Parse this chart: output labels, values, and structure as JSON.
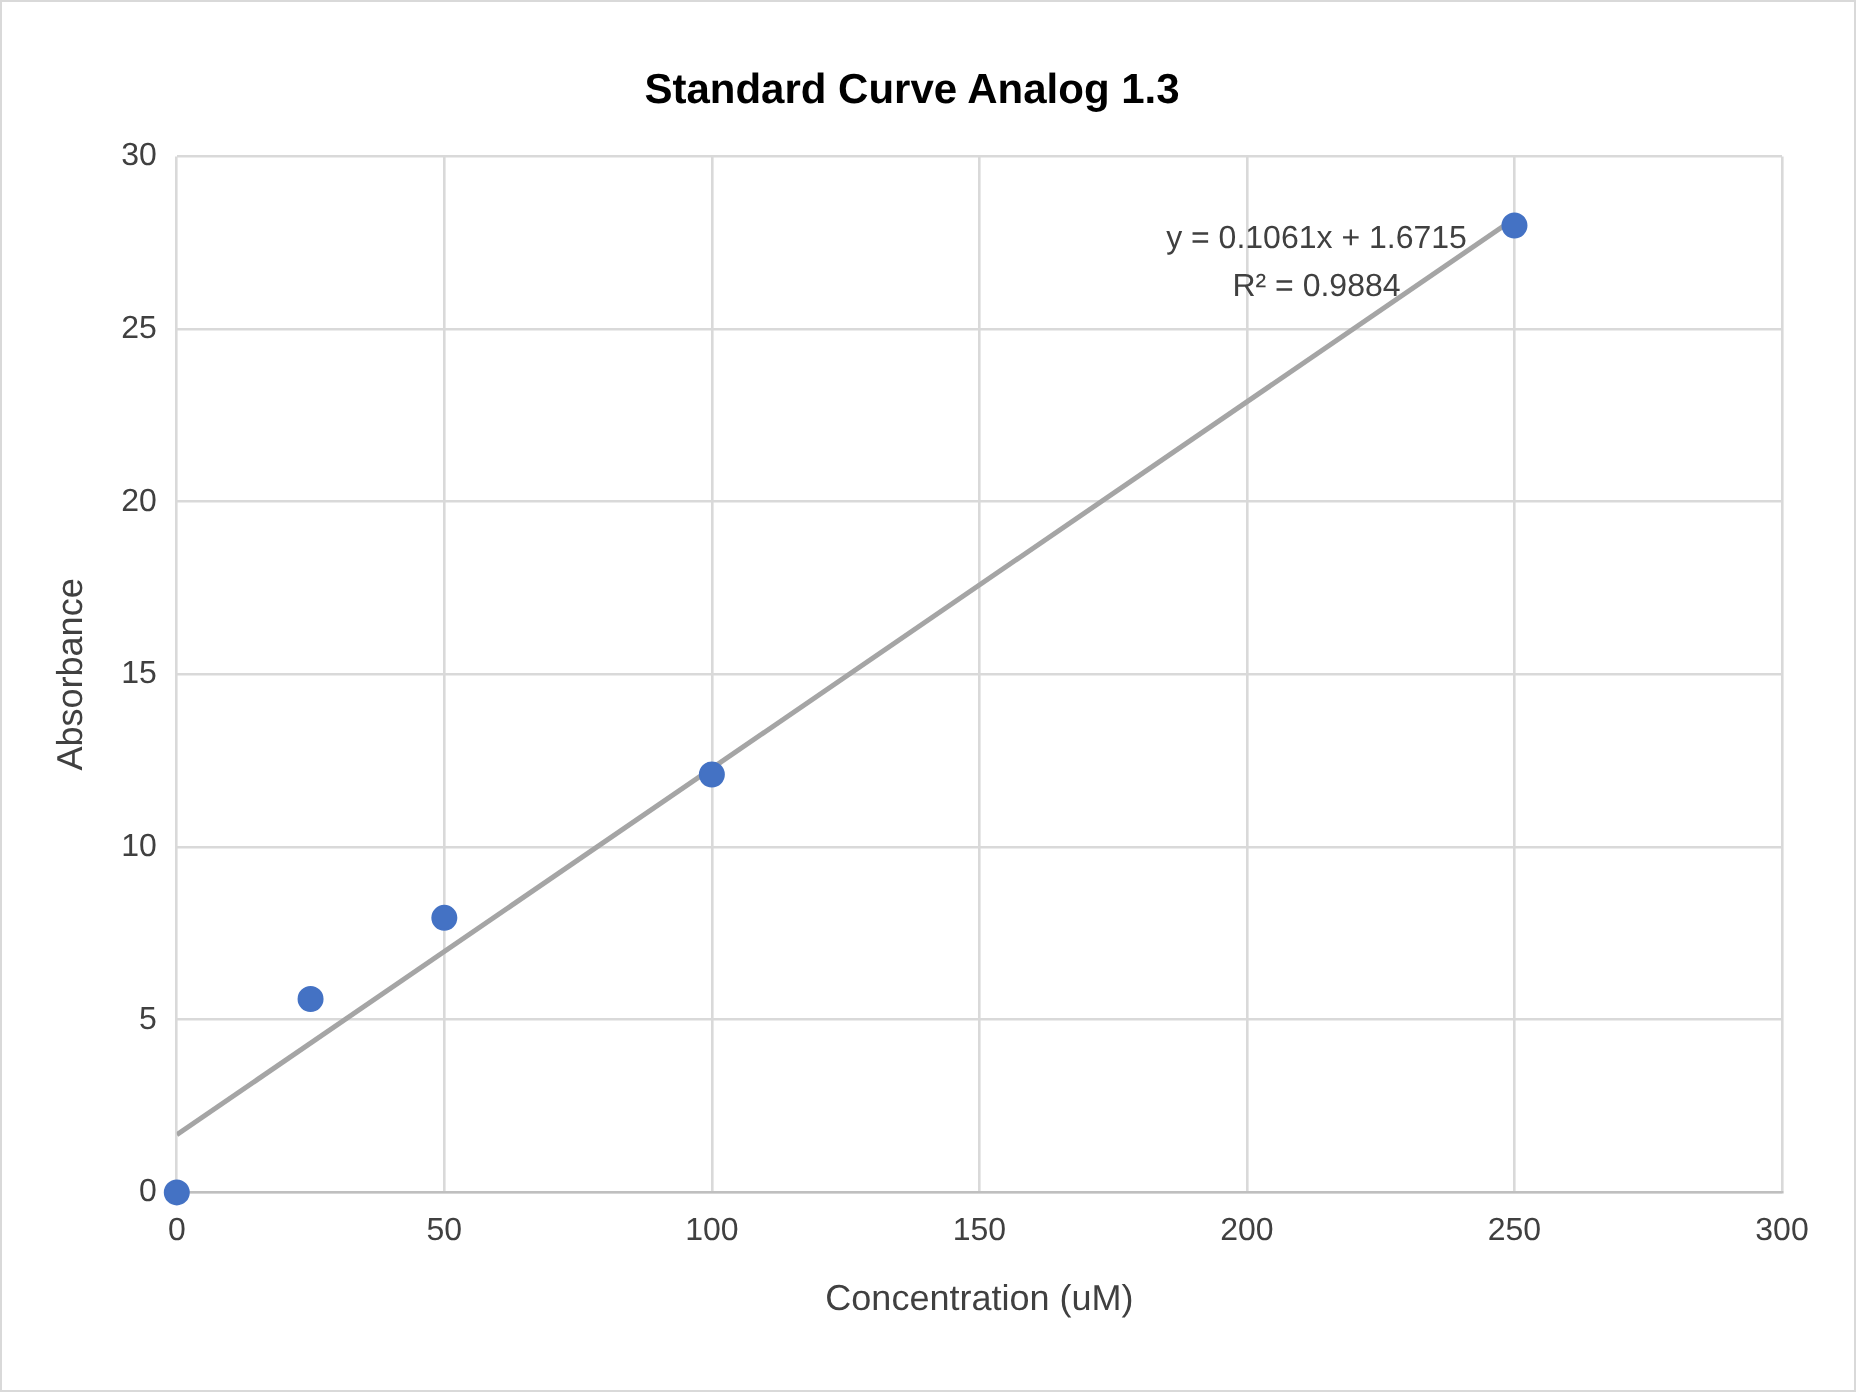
{
  "chart_data": {
    "type": "scatter",
    "title": "Standard Curve Analog 1.3",
    "xlabel": "Concentration (uM)",
    "ylabel": "Absorbance",
    "series": [
      {
        "type": "scatter",
        "marker": "circle",
        "color": "#4472c4",
        "x": [
          0,
          25,
          50,
          100,
          250
        ],
        "values": [
          0,
          5.6,
          7.95,
          12.1,
          28
        ]
      },
      {
        "type": "line",
        "marker": "none",
        "color": "#a5a5a5",
        "x": [
          0,
          250
        ],
        "values": [
          1.67,
          28.2
        ]
      }
    ],
    "annotations": [
      "y = 0.1061x + 1.6715",
      "R² = 0.9884"
    ],
    "xlim": [
      0,
      300
    ],
    "xticks": [
      0,
      50,
      100,
      150,
      200,
      250,
      300
    ],
    "ylim": [
      0,
      30
    ],
    "yticks": [
      0,
      5,
      10,
      15,
      20,
      25,
      30
    ],
    "grid": true
  }
}
